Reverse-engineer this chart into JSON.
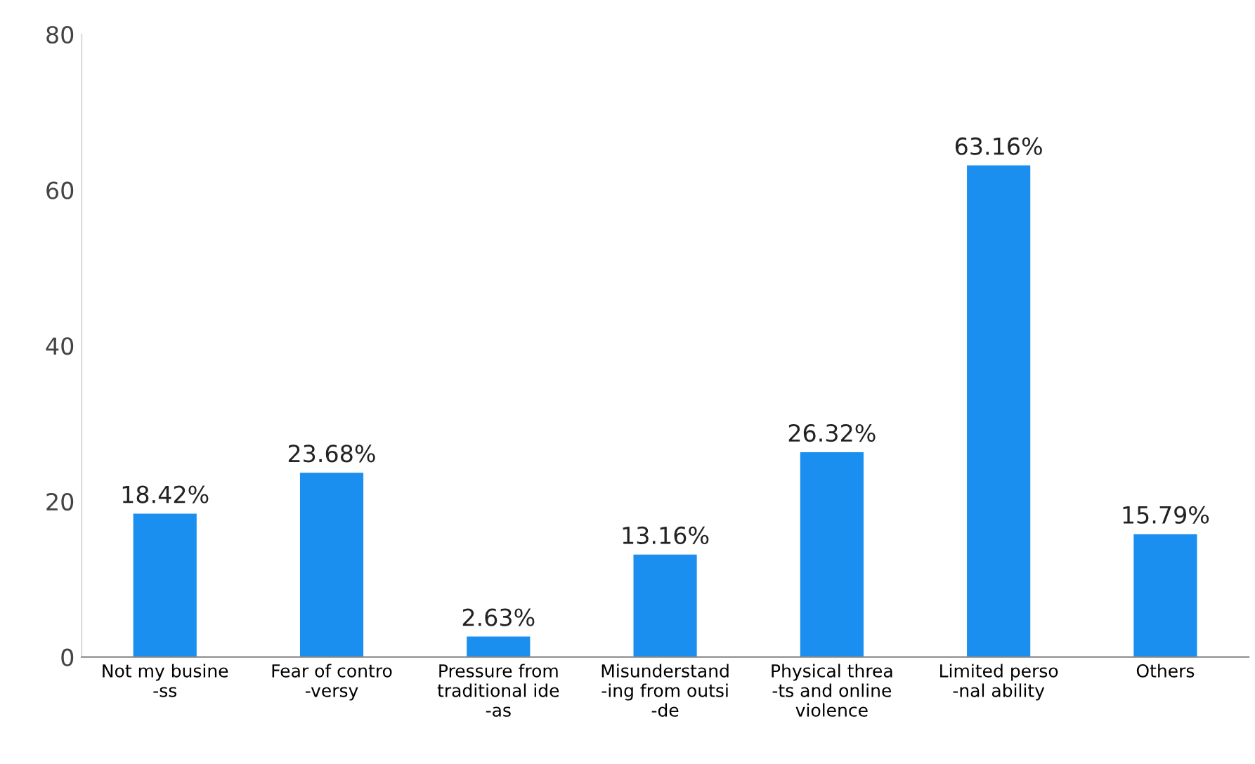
{
  "chart_data": {
    "type": "bar",
    "categories": [
      "Not my busine\n-ss",
      "Fear of contro\n-versy",
      "Pressure from\ntraditional ide\n-as",
      "Misunderstand\n-ing from outsi\n-de",
      "Physical threa\n-ts and online\nviolence",
      "Limited perso\n-nal ability",
      "Others"
    ],
    "values": [
      18.42,
      23.68,
      2.63,
      13.16,
      26.32,
      63.16,
      15.79
    ],
    "value_labels": [
      "18.42%",
      "23.68%",
      "2.63%",
      "13.16%",
      "26.32%",
      "63.16%",
      "15.79%"
    ],
    "color": "#1a8fef",
    "ylim": [
      0,
      80
    ],
    "yticks": [
      0,
      20,
      40,
      60,
      80
    ],
    "grid": false,
    "legend": false
  }
}
